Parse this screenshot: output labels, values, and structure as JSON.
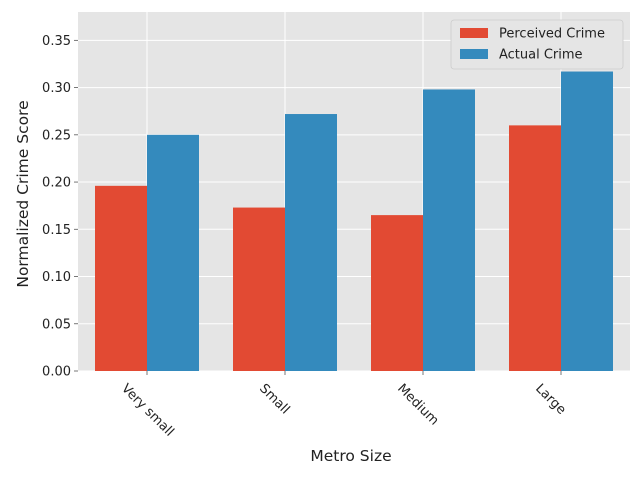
{
  "chart_data": {
    "type": "bar",
    "title": "",
    "xlabel": "Metro Size",
    "ylabel": "Normalized Crime Score",
    "categories": [
      "Very small",
      "Small",
      "Medium",
      "Large"
    ],
    "series": [
      {
        "name": "Perceived Crime",
        "values": [
          0.196,
          0.173,
          0.165,
          0.26
        ],
        "color": "#E24A33"
      },
      {
        "name": "Actual Crime",
        "values": [
          0.25,
          0.272,
          0.298,
          0.317
        ],
        "color": "#348ABD"
      }
    ],
    "ylim": [
      0,
      0.38
    ],
    "yticks": [
      "0.00",
      "0.05",
      "0.10",
      "0.15",
      "0.20",
      "0.25",
      "0.30",
      "0.35"
    ],
    "grid": true,
    "legend_position": "top-right",
    "background_color": "#E5E5E5",
    "grid_color": "#FFFFFF"
  }
}
